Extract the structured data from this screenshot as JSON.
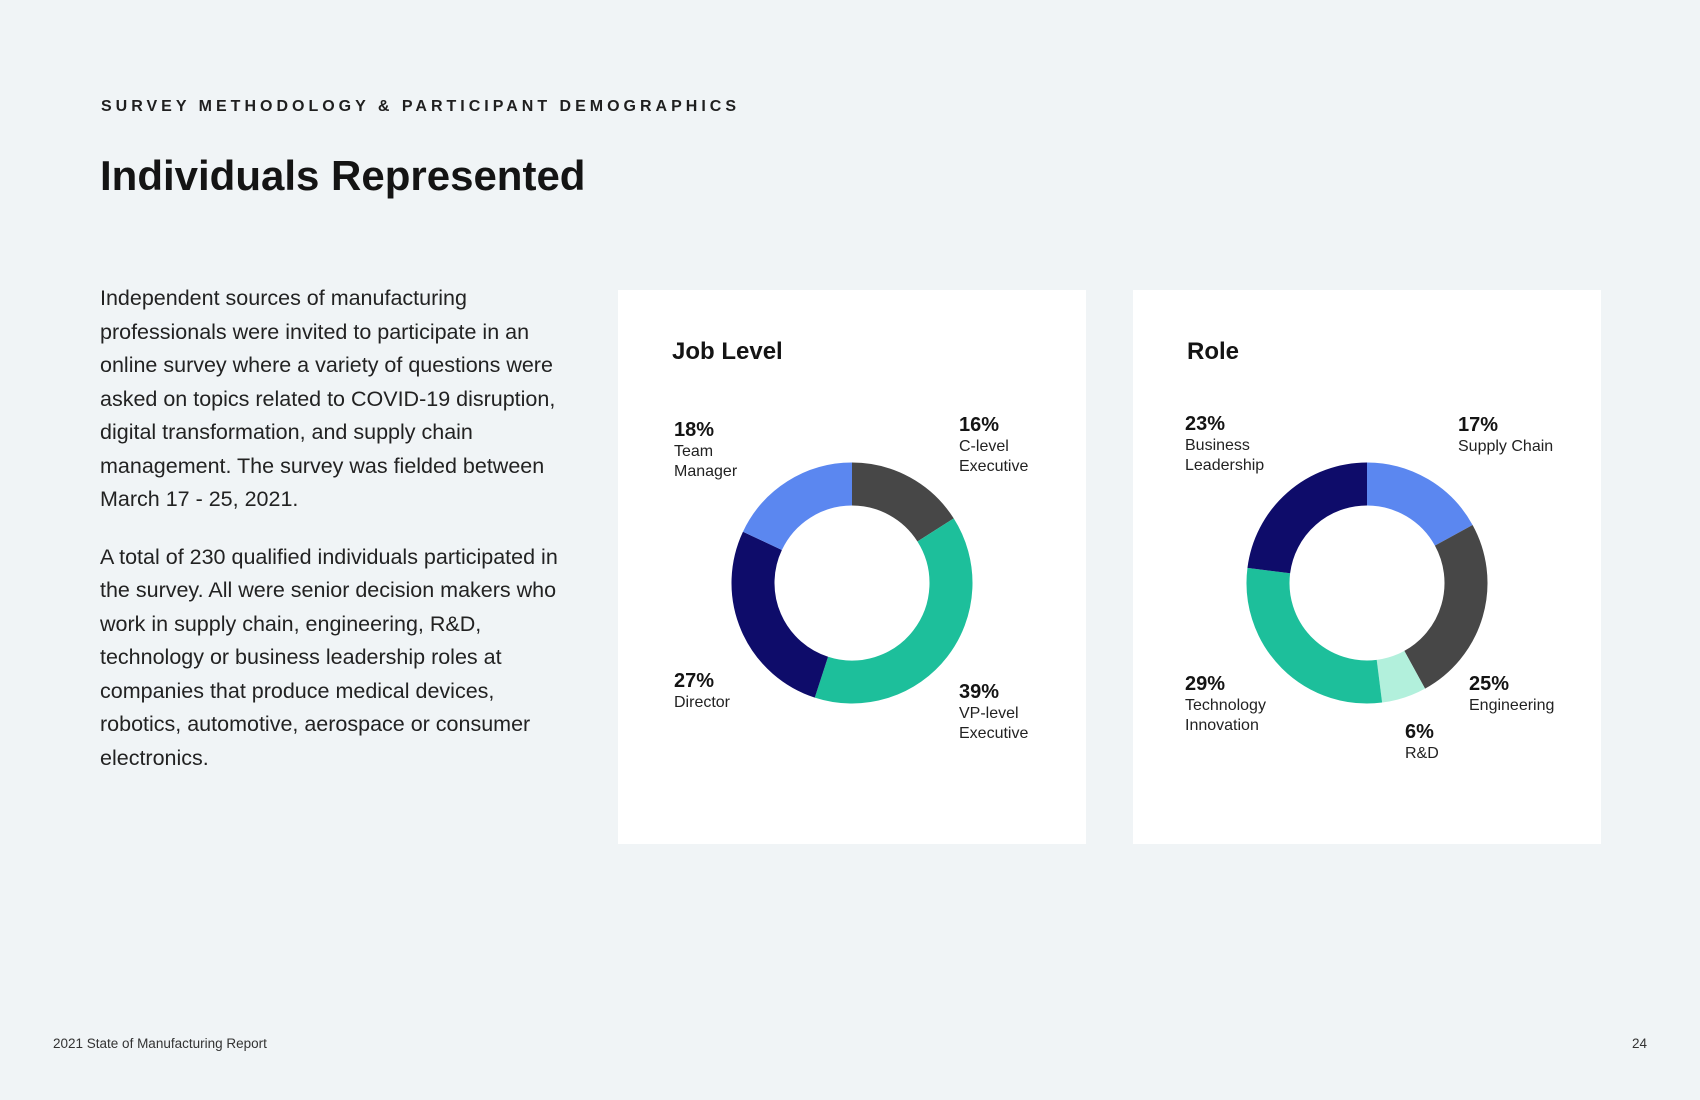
{
  "header": {
    "eyebrow": "SURVEY METHODOLOGY & PARTICIPANT DEMOGRAPHICS",
    "title": "Individuals Represented"
  },
  "body": {
    "paragraphs": [
      "Independent sources of manufacturing professionals were invited to participate in an online survey where a variety of questions were asked on topics related to COVID-19 disruption, digital transformation, and supply chain management. The survey was fielded between March 17 - 25, 2021.",
      "A total of 230 qualified individuals participated in the survey. All were senior decision makers who work in supply chain, engineering, R&D, technology or business leadership roles at companies that produce medical devices, robotics, automotive, aerospace or consumer electronics."
    ]
  },
  "chart_data": [
    {
      "type": "pie",
      "title": "Job Level",
      "donut": true,
      "slices": [
        {
          "label": "C-level\nExecutive",
          "value": 16,
          "display": "16%",
          "color": "#474747"
        },
        {
          "label": "VP-level\nExecutive",
          "value": 39,
          "display": "39%",
          "color": "#1dbf9b"
        },
        {
          "label": "Director",
          "value": 27,
          "display": "27%",
          "color": "#0e0c6a"
        },
        {
          "label": "Team\nManager",
          "value": 18,
          "display": "18%",
          "color": "#5b87f0"
        }
      ]
    },
    {
      "type": "pie",
      "title": "Role",
      "donut": true,
      "slices": [
        {
          "label": "Supply Chain",
          "value": 17,
          "display": "17%",
          "color": "#5b87f0"
        },
        {
          "label": "Engineering",
          "value": 25,
          "display": "25%",
          "color": "#474747"
        },
        {
          "label": "R&D",
          "value": 6,
          "display": "6%",
          "color": "#b2f0dc"
        },
        {
          "label": "Technology\nInnovation",
          "value": 29,
          "display": "29%",
          "color": "#1dbf9b"
        },
        {
          "label": "Business\nLeadership",
          "value": 23,
          "display": "23%",
          "color": "#0e0c6a"
        }
      ]
    }
  ],
  "footer": {
    "report_name": "2021 State of Manufacturing Report",
    "page_number": "24"
  }
}
